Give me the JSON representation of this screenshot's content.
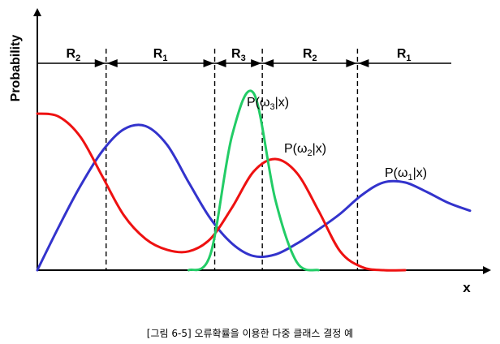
{
  "chart_data": {
    "type": "line",
    "xlabel": "x",
    "ylabel": "Probability",
    "x": [
      0,
      0.05,
      0.1,
      0.15,
      0.2,
      0.25,
      0.3,
      0.35,
      0.4,
      0.45,
      0.5,
      0.55,
      0.6,
      0.65,
      0.7,
      0.75,
      0.8,
      0.85,
      0.9,
      0.95,
      1
    ],
    "series": [
      {
        "name": "P(ω1|x)",
        "color": "#3333cc",
        "values": [
          0.0,
          0.28,
          0.54,
          0.76,
          0.9,
          0.92,
          0.8,
          0.56,
          0.33,
          0.17,
          0.09,
          0.1,
          0.17,
          0.26,
          0.36,
          0.48,
          0.56,
          0.56,
          0.5,
          0.43,
          0.38
        ]
      },
      {
        "name": "P(ω2|x)",
        "color": "#ee1111",
        "values": [
          1.0,
          0.98,
          0.85,
          0.6,
          0.35,
          0.2,
          0.13,
          0.12,
          0.2,
          0.4,
          0.63,
          0.71,
          0.62,
          0.38,
          0.12,
          0.02,
          0.0,
          0.0,
          null,
          null,
          null
        ]
      },
      {
        "name": "P(ω3|x)",
        "color": "#22cc66",
        "values": [
          null,
          null,
          null,
          null,
          null,
          null,
          null,
          0.0,
          0.1,
          0.86,
          1.13,
          0.45,
          0.05,
          0.0,
          null,
          null,
          null,
          null,
          null,
          null,
          null
        ]
      }
    ],
    "regions": [
      "R2",
      "R1",
      "R3",
      "R2",
      "R1"
    ],
    "region_boundaries": [
      0.159,
      0.41,
      0.52,
      0.74
    ]
  },
  "caption": "[그림 6-5]  오류확률을 이용한 다중 클래스 결정  예"
}
